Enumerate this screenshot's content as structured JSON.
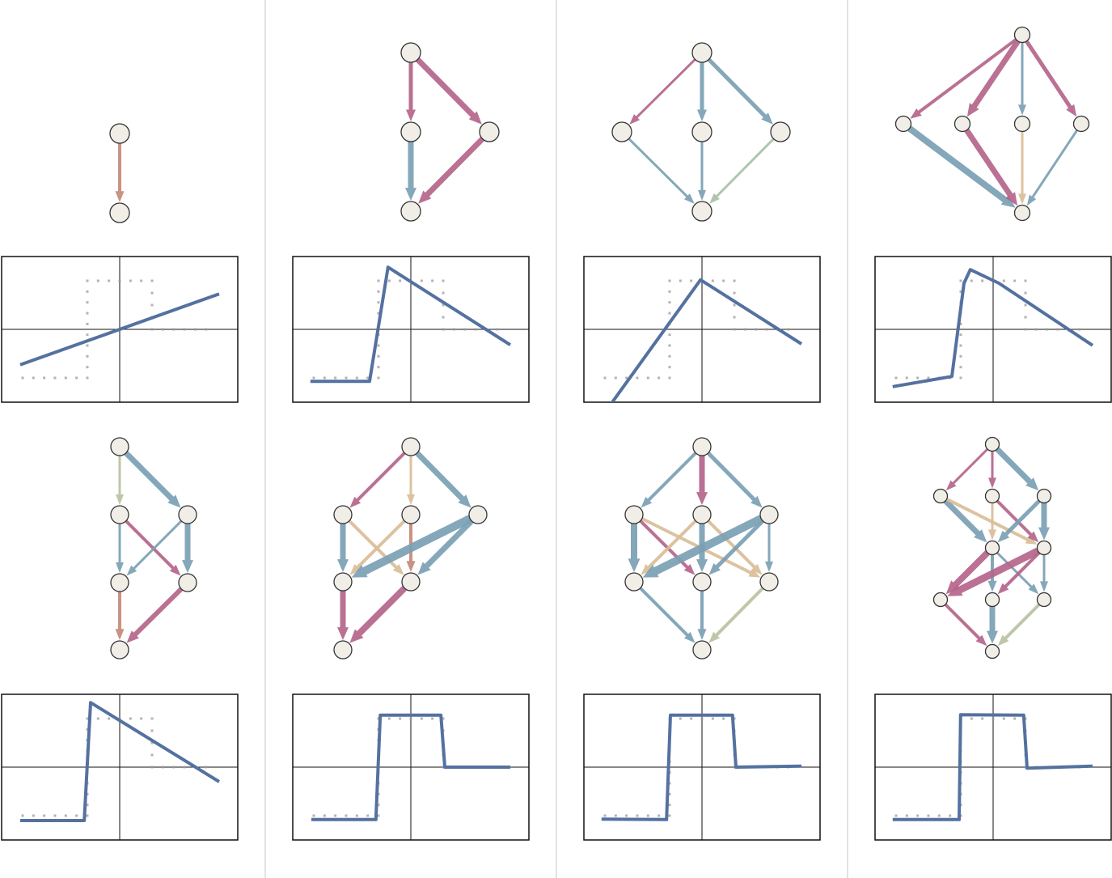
{
  "colors": {
    "pink": "#b5668a",
    "blue": "#7ba0b5",
    "tan": "#dbbd98",
    "terracotta": "#c48a78",
    "sage": "#b9c4a2",
    "green": "#a9c2a8",
    "node_fill": "#f1eee8",
    "curve": "#5471a0",
    "target": "#9a9a9a",
    "divider": "#d8d8d8"
  },
  "chart_data": {
    "type": "line",
    "xlim": [
      -2.43,
      2.43
    ],
    "ylim": [
      -1.5,
      1.5
    ],
    "target": [
      [
        -2,
        -1
      ],
      [
        -0.667,
        -1
      ],
      [
        -0.667,
        1
      ],
      [
        0.667,
        1
      ],
      [
        0.667,
        0
      ],
      [
        2,
        0
      ]
    ],
    "panels": [
      {
        "curve": [
          [
            -2.05,
            -0.73
          ],
          [
            2.05,
            0.73
          ]
        ]
      },
      {
        "curve": [
          [
            -2.07,
            -1.07
          ],
          [
            -0.85,
            -1.07
          ],
          [
            -0.47,
            1.28
          ],
          [
            2.05,
            -0.32
          ]
        ]
      },
      {
        "curve": [
          [
            -2,
            -1.71
          ],
          [
            -0.03,
            1.02
          ],
          [
            2.05,
            -0.3
          ]
        ]
      },
      {
        "curve": [
          [
            -2.07,
            -1.18
          ],
          [
            -0.85,
            -0.97
          ],
          [
            -0.6,
            0.95
          ],
          [
            -0.47,
            1.23
          ],
          [
            0.12,
            0.95
          ],
          [
            2.05,
            -0.33
          ]
        ]
      },
      {
        "curve": [
          [
            -2.05,
            -1.1
          ],
          [
            -0.73,
            -1.1
          ],
          [
            -0.6,
            1.33
          ],
          [
            2.05,
            -0.3
          ]
        ]
      },
      {
        "curve": [
          [
            -2.05,
            -1.08
          ],
          [
            -0.72,
            -1.08
          ],
          [
            -0.63,
            1.07
          ],
          [
            0.62,
            1.07
          ],
          [
            0.7,
            0
          ],
          [
            2.05,
            0
          ]
        ]
      },
      {
        "curve": [
          [
            -2.07,
            -1.07
          ],
          [
            -0.73,
            -1.08
          ],
          [
            -0.65,
            1.07
          ],
          [
            0.63,
            1.07
          ],
          [
            0.7,
            0
          ],
          [
            2.05,
            0.02
          ]
        ]
      },
      {
        "curve": [
          [
            -2.07,
            -1.08
          ],
          [
            -0.7,
            -1.08
          ],
          [
            -0.67,
            1.08
          ],
          [
            0.63,
            1.07
          ],
          [
            0.7,
            -0.02
          ],
          [
            2.05,
            0.02
          ]
        ]
      }
    ]
  },
  "graphs": [
    {
      "edges": [
        [
          "A",
          "B",
          "terracotta",
          4
        ]
      ]
    },
    {
      "edges": [
        [
          "A",
          "B",
          "pink",
          5
        ],
        [
          "A",
          "C",
          "pink",
          7
        ],
        [
          "B",
          "D",
          "blue",
          7
        ],
        [
          "C",
          "D",
          "pink",
          7
        ]
      ]
    },
    {
      "edges": [
        [
          "A",
          "B",
          "pink",
          3
        ],
        [
          "A",
          "C",
          "blue",
          5
        ],
        [
          "A",
          "D",
          "blue",
          5
        ],
        [
          "B",
          "E",
          "blue",
          3
        ],
        [
          "C",
          "E",
          "blue",
          3
        ],
        [
          "D",
          "E",
          "green",
          3
        ]
      ]
    },
    {
      "edges": [
        [
          "A",
          "B",
          "pink",
          4
        ],
        [
          "A",
          "C",
          "pink",
          7
        ],
        [
          "A",
          "D",
          "blue",
          3
        ],
        [
          "A",
          "E",
          "pink",
          5
        ],
        [
          "B",
          "F",
          "blue",
          8
        ],
        [
          "C",
          "F",
          "pink",
          7
        ],
        [
          "D",
          "F",
          "tan",
          3
        ],
        [
          "E",
          "F",
          "blue",
          3
        ]
      ]
    },
    {
      "edges": [
        [
          "A",
          "B",
          "sage",
          3
        ],
        [
          "A",
          "C",
          "blue",
          7
        ],
        [
          "B",
          "D",
          "blue",
          3
        ],
        [
          "B",
          "E",
          "pink",
          4
        ],
        [
          "C",
          "D",
          "blue",
          3
        ],
        [
          "C",
          "E",
          "blue",
          7
        ],
        [
          "D",
          "F",
          "terracotta",
          4
        ],
        [
          "E",
          "F",
          "pink",
          6
        ]
      ]
    },
    {
      "edges": [
        [
          "A",
          "B",
          "pink",
          4
        ],
        [
          "A",
          "C",
          "tan",
          3
        ],
        [
          "A",
          "D",
          "blue",
          7
        ],
        [
          "B",
          "E",
          "blue",
          7
        ],
        [
          "B",
          "F",
          "tan",
          4
        ],
        [
          "C",
          "E",
          "tan",
          4
        ],
        [
          "C",
          "F",
          "terracotta",
          4
        ],
        [
          "D",
          "E",
          "blue",
          10
        ],
        [
          "D",
          "F",
          "blue",
          7
        ],
        [
          "E",
          "G",
          "pink",
          7
        ],
        [
          "F",
          "G",
          "pink",
          8
        ]
      ]
    },
    {
      "edges": [
        [
          "A",
          "B",
          "blue",
          4
        ],
        [
          "A",
          "C",
          "pink",
          7
        ],
        [
          "A",
          "D",
          "blue",
          5
        ],
        [
          "B",
          "E",
          "blue",
          8
        ],
        [
          "B",
          "F",
          "pink",
          4
        ],
        [
          "B",
          "G",
          "tan",
          4
        ],
        [
          "C",
          "E",
          "tan",
          4
        ],
        [
          "C",
          "F",
          "blue",
          7
        ],
        [
          "C",
          "G",
          "tan",
          4
        ],
        [
          "D",
          "E",
          "blue",
          10
        ],
        [
          "D",
          "F",
          "blue",
          5
        ],
        [
          "D",
          "G",
          "blue",
          3
        ],
        [
          "E",
          "H",
          "blue",
          4
        ],
        [
          "F",
          "H",
          "blue",
          4
        ],
        [
          "G",
          "H",
          "sage",
          4
        ]
      ]
    },
    {
      "edges": [
        [
          "A",
          "B",
          "pink",
          3
        ],
        [
          "A",
          "C",
          "pink",
          3
        ],
        [
          "A",
          "D",
          "blue",
          7
        ],
        [
          "B",
          "E",
          "blue",
          7
        ],
        [
          "B",
          "F",
          "tan",
          4
        ],
        [
          "C",
          "E",
          "tan",
          3
        ],
        [
          "C",
          "F",
          "pink",
          4
        ],
        [
          "D",
          "E",
          "blue",
          5
        ],
        [
          "D",
          "F",
          "blue",
          7
        ],
        [
          "E",
          "G",
          "pink",
          8
        ],
        [
          "E",
          "H",
          "blue",
          4
        ],
        [
          "E",
          "I",
          "blue",
          3
        ],
        [
          "F",
          "G",
          "pink",
          9
        ],
        [
          "F",
          "H",
          "pink",
          4
        ],
        [
          "F",
          "I",
          "blue",
          3
        ],
        [
          "G",
          "J",
          "pink",
          4
        ],
        [
          "H",
          "J",
          "blue",
          7
        ],
        [
          "I",
          "J",
          "sage",
          4
        ]
      ]
    }
  ]
}
